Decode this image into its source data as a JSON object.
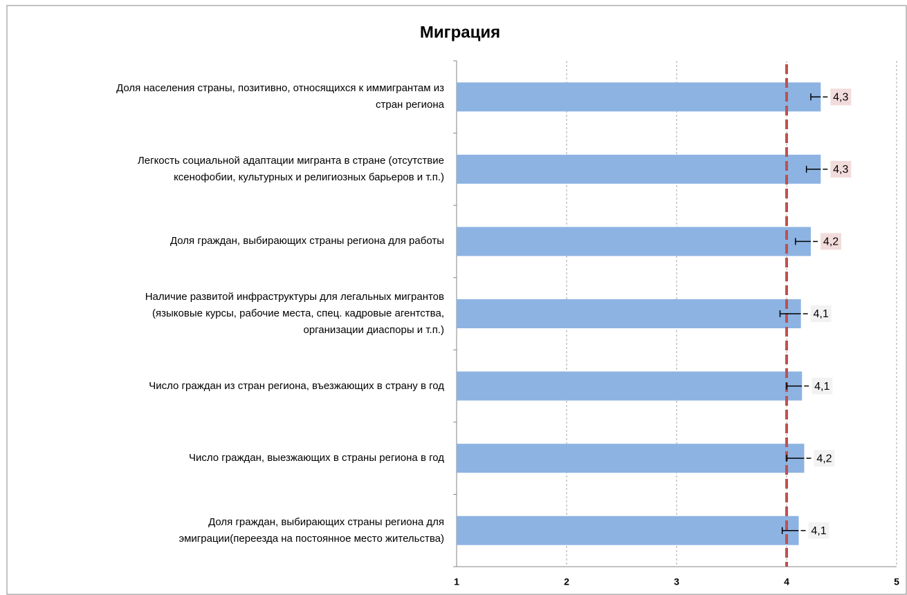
{
  "chart_data": {
    "type": "bar",
    "orientation": "horizontal",
    "title": "Миграция",
    "categories": [
      "Доля населения страны, позитивно, относящихся к иммигрантам из\nстран региона",
      "Легкость социальной адаптации мигранта в стране (отсутствие\nксенофобии, культурных и религиозных барьеров  и т.п.)",
      "Доля граждан, выбирающих страны региона для работы",
      "Наличие развитой инфраструктуры для легальных мигрантов\n(языковые курсы, рабочие места, спец. кадровые агентства,\nорганизации диаспоры и т.п.)",
      "Число граждан из стран региона, въезжающих в страну в год",
      "Число граждан, выезжающих в страны региона в год",
      "Доля граждан, выбирающих страны региона для\nэмиграции(переезда на постоянное место жительства)"
    ],
    "values": [
      4.31,
      4.31,
      4.22,
      4.13,
      4.14,
      4.16,
      4.11
    ],
    "value_labels": [
      "4,3",
      "4,3",
      "4,2",
      "4,1",
      "4,1",
      "4,2",
      "4,1"
    ],
    "errors": [
      0.09,
      0.13,
      0.14,
      0.19,
      0.14,
      0.16,
      0.15
    ],
    "color": "#8db3e2",
    "label_backgrounds": [
      "#f2dcdb",
      "#f2dcdb",
      "#f2dcdb",
      "#f2f2f2",
      "#f2f2f2",
      "#f2f2f2",
      "#f2f2f2"
    ],
    "reference_line": 4,
    "reference_color": "#c0504d",
    "xlim": [
      1,
      5
    ],
    "xticks": [
      1,
      2,
      3,
      4,
      5
    ],
    "grid": true
  }
}
